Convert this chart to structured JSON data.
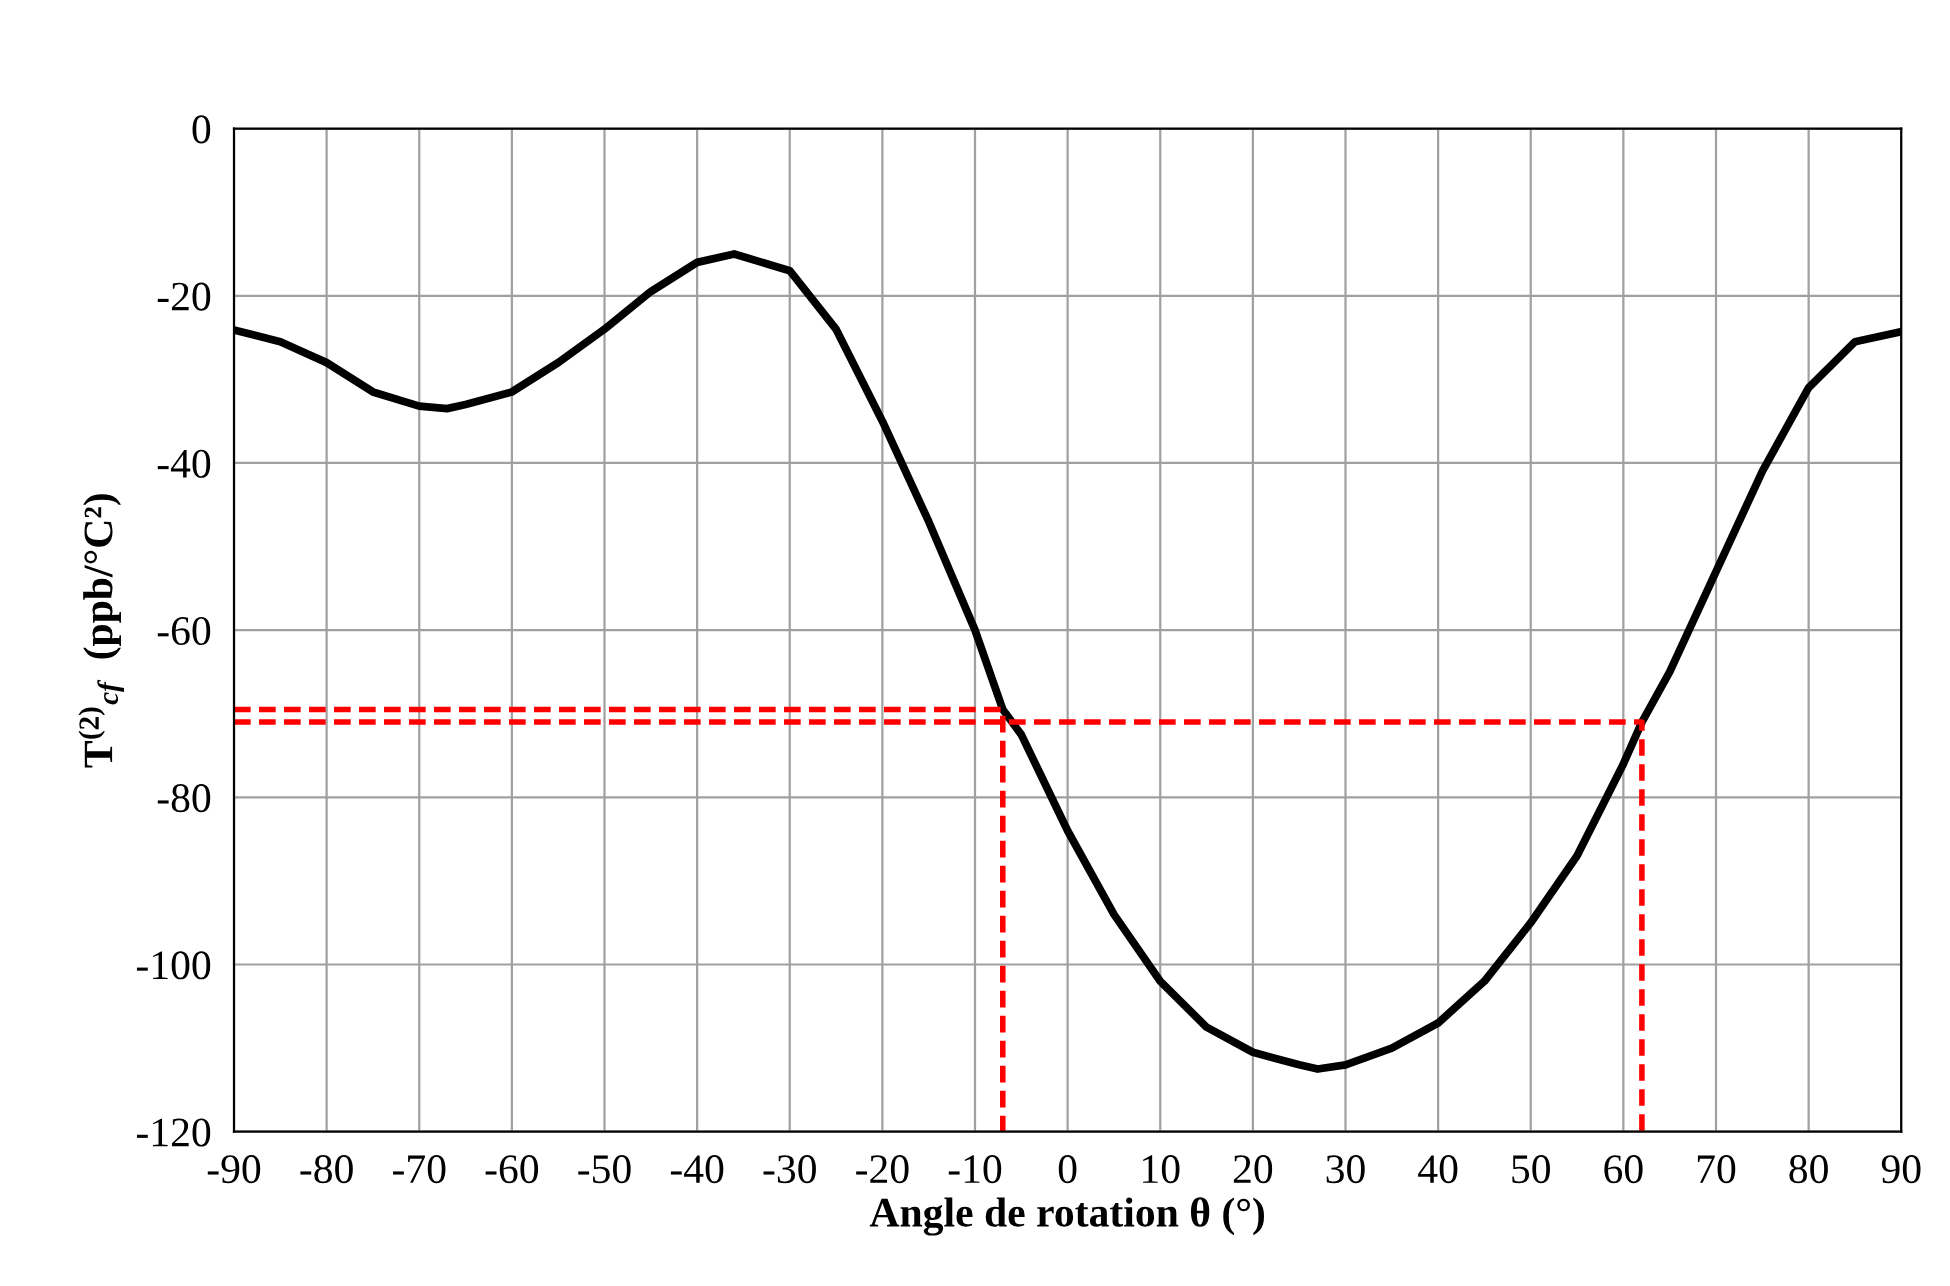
{
  "chart_data": {
    "type": "line",
    "xlabel": "Angle de rotation θ (°)",
    "ylabel": "T$^{(2)}$$_{cf}$  (ppb/°C²)",
    "xlim": [
      -90,
      90
    ],
    "ylim": [
      -120,
      0
    ],
    "xticks": [
      -90,
      -80,
      -70,
      -60,
      -50,
      -40,
      -30,
      -20,
      -10,
      0,
      10,
      20,
      30,
      40,
      50,
      60,
      70,
      80,
      90
    ],
    "yticks": [
      -120,
      -100,
      -80,
      -60,
      -40,
      -20,
      0
    ],
    "grid": true,
    "legend": false,
    "series": [
      {
        "color": "#000000",
        "line_style": "solid",
        "x": [
          -90,
          -85,
          -80,
          -75,
          -70,
          -67,
          -65,
          -60,
          -55,
          -50,
          -45,
          -40,
          -36,
          -30,
          -25,
          -20,
          -15,
          -10,
          -7,
          -5,
          0,
          5,
          10,
          15,
          20,
          25,
          27,
          30,
          35,
          40,
          45,
          50,
          55,
          60,
          62,
          65,
          70,
          75,
          80,
          85,
          90
        ],
        "values": [
          -24.1,
          -25.5,
          -28,
          -31.5,
          -33.2,
          -33.5,
          -33,
          -31.5,
          -28,
          -24,
          -19.5,
          -16,
          -15,
          -17,
          -24,
          -35,
          -47,
          -60,
          -69.5,
          -72.5,
          -84,
          -94,
          -102,
          -107.5,
          -110.5,
          -112,
          -112.5,
          -112,
          -110,
          -107,
          -102,
          -95,
          -87,
          -76,
          -71,
          -65,
          -53,
          -41,
          -31,
          -25.5,
          -24.3
        ]
      },
      {
        "color": "#ff0000",
        "line_style": "dashed",
        "x": [
          -90,
          -7,
          -7
        ],
        "values": [
          -69.5,
          -69.5,
          -120
        ]
      },
      {
        "color": "#ff0000",
        "line_style": "dashed",
        "x": [
          -90,
          62,
          62
        ],
        "values": [
          -71,
          -71,
          -120
        ]
      }
    ]
  }
}
